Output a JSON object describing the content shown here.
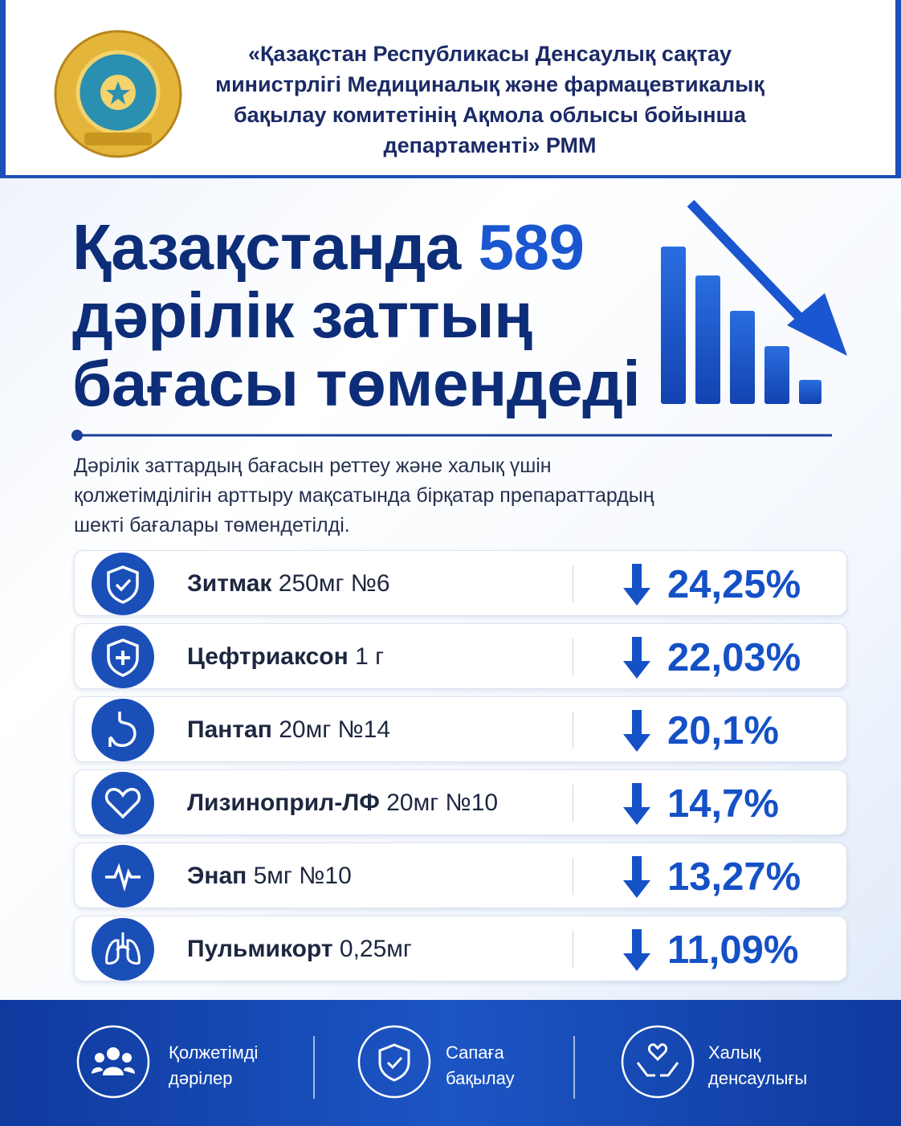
{
  "header": {
    "org_lines": [
      "«Қазақстан Республикасы Денсаулық сақтау",
      "министрлігі Медициналық және фармацевтикалық",
      "бақылау комитетінің Ақмола облысы бойынша",
      "департаменті» РММ"
    ]
  },
  "headline": {
    "prefix": "Қазақстанда",
    "number": "589",
    "line2": "дәрілік заттың",
    "line3": "бағасы төмендеді"
  },
  "description": [
    "Дәрілік заттардың бағасын реттеу және халық үшін",
    "қолжетімділігін арттыру мақсатында бірқатар препараттардың",
    "шекті бағалары төмендетілді."
  ],
  "drugs": [
    {
      "name": "Зитмак",
      "dose": "250мг №6",
      "change": "24,25%"
    },
    {
      "name": "Цефтриаксон",
      "dose": "1 г",
      "change": "22,03%"
    },
    {
      "name": "Пантап",
      "dose": "20мг №14",
      "change": "20,1%"
    },
    {
      "name": "Лизиноприл-ЛФ",
      "dose": "20мг №10",
      "change": "14,7%"
    },
    {
      "name": "Энап",
      "dose": "5мг №10",
      "change": "13,27%"
    },
    {
      "name": "Пульмикорт",
      "dose": "0,25мг",
      "change": "11,09%"
    }
  ],
  "footer": [
    {
      "lines": [
        "Қолжетімді",
        "дәрілер"
      ]
    },
    {
      "lines": [
        "Сапаға",
        "бақылау"
      ]
    },
    {
      "lines": [
        "Халық",
        "денсаулығы"
      ]
    }
  ]
}
